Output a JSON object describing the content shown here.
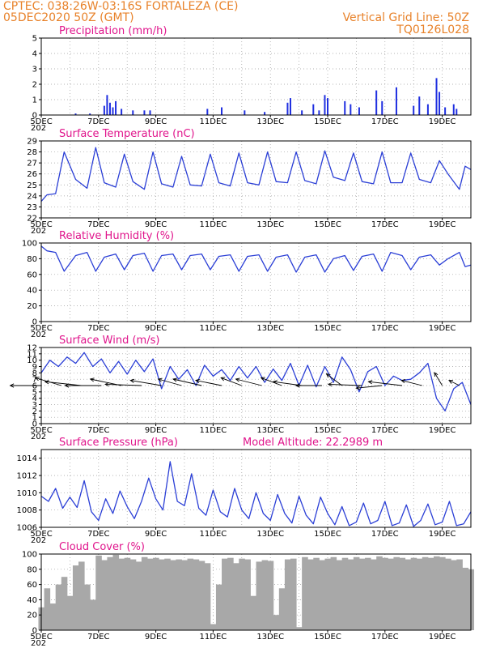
{
  "header": {
    "source_location": "CPTEC:  038:26W-03:16S  FORTALEZA (CE)",
    "run_date": "05DEC2020 50Z (GMT)",
    "grid_note": "Vertical Grid Line: 50Z",
    "code": "TQ0126L028"
  },
  "x_axis": {
    "days": [
      5,
      20
    ],
    "tick_days": [
      5,
      7,
      9,
      11,
      13,
      15,
      17,
      19
    ],
    "tick_labels": [
      "5DEC",
      "7DEC",
      "9DEC",
      "11DEC",
      "13DEC",
      "15DEC",
      "17DEC",
      "19DEC"
    ],
    "year_fragment": "202"
  },
  "colors": {
    "line": "#2b3fd6",
    "bar": "#1f2fe0",
    "cloud": "#a8a8a8",
    "title": "#e0158c",
    "header": "#e8822a"
  },
  "chart_data": [
    {
      "type": "bar",
      "title": "Precipitation (mm/h)",
      "ylim": [
        0,
        5
      ],
      "yticks": [
        0,
        1,
        2,
        3,
        4,
        5
      ],
      "x": [
        6.2,
        6.7,
        7.2,
        7.3,
        7.4,
        7.5,
        7.6,
        7.8,
        8.2,
        8.6,
        8.8,
        10.8,
        11.3,
        12.1,
        12.8,
        13.6,
        13.7,
        14.1,
        14.5,
        14.7,
        14.9,
        15.0,
        15.6,
        15.8,
        16.1,
        16.7,
        16.9,
        17.4,
        18.0,
        18.2,
        18.5,
        18.8,
        18.9,
        19.1,
        19.4,
        19.5
      ],
      "values": [
        0.1,
        0.1,
        0.6,
        1.3,
        0.8,
        0.5,
        0.9,
        0.4,
        0.3,
        0.3,
        0.3,
        0.4,
        0.5,
        0.3,
        0.2,
        0.8,
        1.1,
        0.3,
        0.7,
        0.3,
        1.3,
        1.1,
        0.9,
        0.7,
        0.5,
        1.6,
        0.9,
        1.8,
        0.6,
        1.2,
        0.7,
        2.4,
        1.5,
        0.5,
        0.7,
        0.4
      ]
    },
    {
      "type": "line",
      "title": "Surface Temperature (nC)",
      "ylim": [
        22,
        29
      ],
      "yticks": [
        22,
        23,
        24,
        25,
        26,
        27,
        28,
        29
      ],
      "x": [
        5.0,
        5.2,
        5.5,
        5.8,
        6.2,
        6.6,
        6.9,
        7.2,
        7.6,
        7.9,
        8.2,
        8.6,
        8.9,
        9.2,
        9.6,
        9.9,
        10.2,
        10.6,
        10.9,
        11.2,
        11.6,
        11.9,
        12.2,
        12.6,
        12.9,
        13.2,
        13.6,
        13.9,
        14.2,
        14.6,
        14.9,
        15.2,
        15.6,
        15.9,
        16.2,
        16.6,
        16.9,
        17.2,
        17.6,
        17.9,
        18.2,
        18.6,
        18.9,
        19.2,
        19.6,
        19.8,
        20.0
      ],
      "values": [
        23.5,
        24.1,
        24.2,
        28.0,
        25.5,
        24.7,
        28.4,
        25.2,
        24.8,
        27.8,
        25.3,
        24.6,
        28.0,
        25.1,
        24.8,
        27.6,
        25.0,
        24.9,
        27.8,
        25.2,
        24.9,
        27.9,
        25.2,
        25.0,
        28.0,
        25.3,
        25.2,
        28.0,
        25.4,
        25.1,
        28.1,
        25.7,
        25.4,
        27.9,
        25.3,
        25.1,
        28.0,
        25.2,
        25.2,
        27.9,
        25.5,
        25.2,
        27.2,
        26.0,
        24.6,
        26.7,
        26.4
      ]
    },
    {
      "type": "line",
      "title": "Relative Humidity (%)",
      "ylim": [
        0,
        100
      ],
      "yticks": [
        0,
        20,
        40,
        60,
        80,
        100
      ],
      "x": [
        5.0,
        5.2,
        5.5,
        5.8,
        6.2,
        6.6,
        6.9,
        7.2,
        7.6,
        7.9,
        8.2,
        8.6,
        8.9,
        9.2,
        9.6,
        9.9,
        10.2,
        10.6,
        10.9,
        11.2,
        11.6,
        11.9,
        12.2,
        12.6,
        12.9,
        13.2,
        13.6,
        13.9,
        14.2,
        14.6,
        14.9,
        15.2,
        15.6,
        15.9,
        16.2,
        16.6,
        16.9,
        17.2,
        17.6,
        17.9,
        18.2,
        18.6,
        18.9,
        19.2,
        19.6,
        19.8,
        20.0
      ],
      "values": [
        96,
        90,
        88,
        64,
        84,
        88,
        64,
        82,
        86,
        66,
        84,
        87,
        64,
        84,
        86,
        66,
        84,
        86,
        66,
        83,
        85,
        64,
        83,
        85,
        64,
        82,
        85,
        63,
        82,
        85,
        63,
        80,
        84,
        65,
        83,
        86,
        64,
        88,
        84,
        66,
        82,
        85,
        72,
        80,
        88,
        70,
        72
      ]
    },
    {
      "type": "line",
      "title": "Surface Wind (m/s)",
      "ylim": [
        0,
        12
      ],
      "yticks": [
        0,
        1,
        2,
        3,
        4,
        5,
        6,
        7,
        8,
        9,
        10,
        11,
        12
      ],
      "x": [
        5.0,
        5.3,
        5.6,
        5.9,
        6.2,
        6.5,
        6.8,
        7.1,
        7.4,
        7.7,
        8.0,
        8.3,
        8.6,
        8.9,
        9.2,
        9.5,
        9.8,
        10.1,
        10.4,
        10.7,
        11.0,
        11.3,
        11.6,
        11.9,
        12.2,
        12.5,
        12.8,
        13.1,
        13.4,
        13.7,
        14.0,
        14.3,
        14.6,
        14.9,
        15.2,
        15.5,
        15.8,
        16.1,
        16.4,
        16.7,
        17.0,
        17.3,
        17.6,
        17.9,
        18.2,
        18.5,
        18.8,
        19.1,
        19.4,
        19.7,
        20.0
      ],
      "values": [
        8.0,
        10.0,
        9.0,
        10.5,
        9.5,
        11.2,
        9.0,
        10.2,
        8.0,
        9.8,
        7.8,
        10.0,
        8.2,
        10.2,
        5.5,
        9.0,
        7.0,
        8.5,
        6.0,
        9.2,
        7.5,
        8.5,
        6.8,
        9.0,
        7.2,
        9.0,
        6.5,
        8.6,
        6.8,
        9.5,
        6.0,
        9.2,
        5.8,
        9.0,
        6.5,
        10.5,
        8.5,
        5.0,
        8.2,
        9.0,
        6.0,
        7.5,
        6.8,
        7.0,
        8.0,
        9.5,
        4.0,
        2.0,
        5.5,
        6.5,
        3.0
      ],
      "arrows": [
        {
          "x": 5.0,
          "u": -1.2,
          "v": 0.0
        },
        {
          "x": 5.7,
          "u": -1.0,
          "v": 0.6
        },
        {
          "x": 6.4,
          "u": -1.4,
          "v": 0.3
        },
        {
          "x": 7.1,
          "u": -1.4,
          "v": 0.0
        },
        {
          "x": 7.8,
          "u": -1.2,
          "v": 0.5
        },
        {
          "x": 8.5,
          "u": -1.4,
          "v": 0.1
        },
        {
          "x": 9.2,
          "u": -1.2,
          "v": 0.4
        },
        {
          "x": 9.9,
          "u": -0.9,
          "v": 0.5
        },
        {
          "x": 10.6,
          "u": -1.1,
          "v": 0.5
        },
        {
          "x": 11.3,
          "u": -1.0,
          "v": 0.4
        },
        {
          "x": 12.0,
          "u": -0.8,
          "v": 0.6
        },
        {
          "x": 12.7,
          "u": -1.0,
          "v": 0.5
        },
        {
          "x": 13.4,
          "u": -0.8,
          "v": 0.6
        },
        {
          "x": 14.1,
          "u": -1.1,
          "v": 0.3
        },
        {
          "x": 14.8,
          "u": -1.0,
          "v": 0.0
        },
        {
          "x": 15.5,
          "u": -0.6,
          "v": 0.9
        },
        {
          "x": 16.2,
          "u": -1.3,
          "v": 0.1
        },
        {
          "x": 16.9,
          "u": -1.0,
          "v": -0.2
        },
        {
          "x": 17.6,
          "u": -1.3,
          "v": 0.3
        },
        {
          "x": 18.3,
          "u": -0.8,
          "v": 0.4
        },
        {
          "x": 19.0,
          "u": -0.3,
          "v": 1.0
        },
        {
          "x": 19.6,
          "u": -0.4,
          "v": 0.4
        }
      ]
    },
    {
      "type": "line",
      "title": "Surface Pressure (hPa)",
      "annotation": "Model Altitude: 22.2989 m",
      "ylim": [
        1006,
        1015
      ],
      "yticks": [
        1006,
        1008,
        1010,
        1012,
        1014
      ],
      "x": [
        5.0,
        5.25,
        5.5,
        5.75,
        6.0,
        6.25,
        6.5,
        6.75,
        7.0,
        7.25,
        7.5,
        7.75,
        8.0,
        8.25,
        8.5,
        8.75,
        9.0,
        9.25,
        9.5,
        9.75,
        10.0,
        10.25,
        10.5,
        10.75,
        11.0,
        11.25,
        11.5,
        11.75,
        12.0,
        12.25,
        12.5,
        12.75,
        13.0,
        13.25,
        13.5,
        13.75,
        14.0,
        14.25,
        14.5,
        14.75,
        15.0,
        15.25,
        15.5,
        15.75,
        16.0,
        16.25,
        16.5,
        16.75,
        17.0,
        17.25,
        17.5,
        17.75,
        18.0,
        18.25,
        18.5,
        18.75,
        19.0,
        19.25,
        19.5,
        19.75,
        20.0
      ],
      "values": [
        1009.6,
        1009.0,
        1010.5,
        1008.2,
        1009.5,
        1008.3,
        1011.4,
        1007.8,
        1006.8,
        1009.3,
        1007.6,
        1010.2,
        1008.4,
        1007.0,
        1009.0,
        1011.7,
        1009.3,
        1008.0,
        1013.6,
        1009.0,
        1008.5,
        1012.2,
        1008.2,
        1007.4,
        1010.3,
        1007.8,
        1007.2,
        1010.5,
        1008.0,
        1007.0,
        1010.0,
        1007.6,
        1006.8,
        1009.8,
        1007.6,
        1006.5,
        1009.6,
        1007.4,
        1006.4,
        1009.5,
        1007.6,
        1006.3,
        1008.4,
        1006.2,
        1006.6,
        1008.8,
        1006.4,
        1006.8,
        1009.0,
        1006.2,
        1006.5,
        1008.6,
        1006.1,
        1006.8,
        1008.7,
        1006.3,
        1006.6,
        1009.0,
        1006.2,
        1006.4,
        1007.8
      ]
    },
    {
      "type": "area",
      "title": "Cloud Cover (%)",
      "ylim": [
        0,
        100
      ],
      "yticks": [
        0,
        20,
        40,
        60,
        80,
        100
      ],
      "x": [
        5.0,
        5.2,
        5.4,
        5.6,
        5.8,
        6.0,
        6.2,
        6.4,
        6.6,
        6.8,
        7.0,
        7.2,
        7.4,
        7.6,
        7.8,
        8.0,
        8.2,
        8.4,
        8.6,
        8.8,
        9.0,
        9.2,
        9.4,
        9.6,
        9.8,
        10.0,
        10.2,
        10.4,
        10.6,
        10.8,
        11.0,
        11.2,
        11.4,
        11.6,
        11.8,
        12.0,
        12.2,
        12.4,
        12.6,
        12.8,
        13.0,
        13.2,
        13.4,
        13.6,
        13.8,
        14.0,
        14.2,
        14.4,
        14.6,
        14.8,
        15.0,
        15.2,
        15.4,
        15.6,
        15.8,
        16.0,
        16.2,
        16.4,
        16.6,
        16.8,
        17.0,
        17.2,
        17.4,
        17.6,
        17.8,
        18.0,
        18.2,
        18.4,
        18.6,
        18.8,
        19.0,
        19.2,
        19.4,
        19.6,
        19.8,
        20.0
      ],
      "values": [
        30,
        55,
        35,
        60,
        70,
        45,
        85,
        90,
        60,
        40,
        98,
        92,
        96,
        99,
        94,
        95,
        93,
        90,
        96,
        94,
        95,
        93,
        94,
        92,
        93,
        92,
        94,
        93,
        91,
        88,
        8,
        60,
        94,
        95,
        88,
        94,
        93,
        45,
        90,
        92,
        91,
        20,
        55,
        93,
        94,
        4,
        96,
        93,
        95,
        92,
        94,
        96,
        92,
        95,
        93,
        96,
        94,
        95,
        93,
        97,
        95,
        94,
        96,
        95,
        93,
        95,
        94,
        96,
        95,
        97,
        96,
        94,
        92,
        93,
        82,
        80
      ]
    }
  ]
}
